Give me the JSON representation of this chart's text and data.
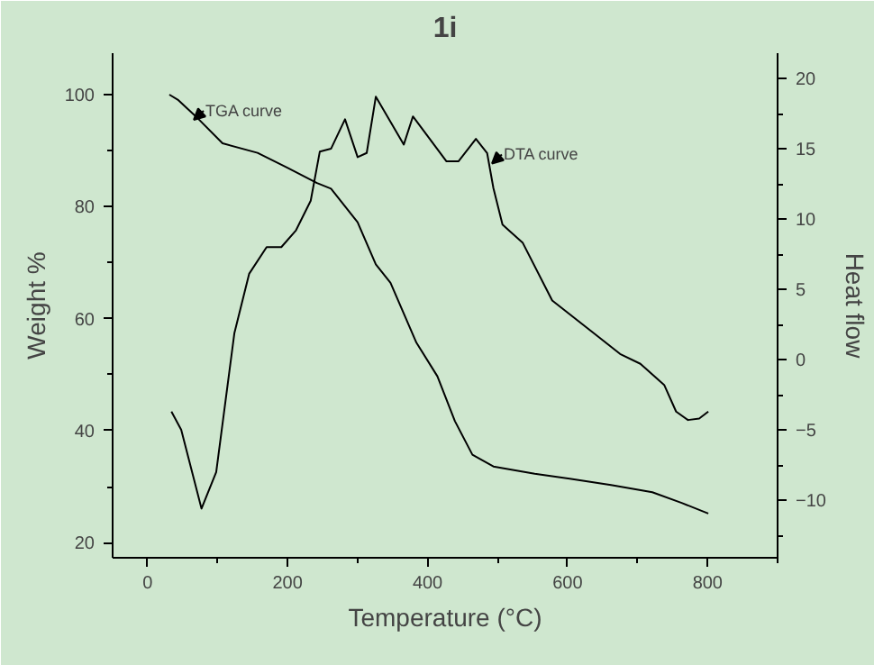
{
  "chart_data": {
    "type": "line",
    "title": "1i",
    "xlabel": "Temperature (°C)",
    "ylabel": "Weight %",
    "y2label": "Heat flow",
    "xlim": [
      -50,
      900
    ],
    "xticks": [
      0,
      200,
      400,
      600,
      800
    ],
    "ylim": [
      17.3,
      107.4
    ],
    "yticks": [
      20,
      40,
      60,
      80,
      100
    ],
    "y2lim": [
      -14.1,
      21.8
    ],
    "y2ticks": [
      -10,
      -5,
      0,
      5,
      10,
      15,
      20
    ],
    "grid": false,
    "marker": "none",
    "line_style": "solid",
    "series": [
      {
        "color": "#000000",
        "x": [
          31,
          44,
          73,
          107,
          157,
          199,
          242,
          262,
          300,
          326,
          347,
          384,
          414,
          439,
          464,
          494,
          553,
          603,
          662,
          721,
          763,
          801
        ],
        "values": [
          100,
          99,
          95.6,
          91.3,
          89.6,
          87,
          84.2,
          83.2,
          77.2,
          69.7,
          66.4,
          55.7,
          49.7,
          41.7,
          35.7,
          33.6,
          32.3,
          31.4,
          30.3,
          29,
          27.1,
          25.2
        ]
      },
      {
        "color": "#000000",
        "axis": "y2",
        "x": [
          34,
          48,
          77,
          98,
          124,
          145,
          170,
          191,
          212,
          233,
          246,
          262,
          282,
          300,
          313,
          326,
          366,
          379,
          427,
          444,
          469,
          485,
          494,
          507,
          536,
          578,
          637,
          675,
          704,
          738,
          755,
          772,
          788,
          801
        ],
        "values": [
          -3.7,
          -5.0,
          -10.6,
          -8.0,
          1.9,
          6.1,
          8.0,
          8.0,
          9.2,
          11.3,
          14.8,
          15.0,
          17.1,
          14.4,
          14.7,
          18.7,
          15.3,
          17.3,
          14.1,
          14.1,
          15.7,
          14.7,
          12.2,
          9.6,
          8.3,
          4.2,
          1.9,
          0.4,
          -0.3,
          -1.8,
          -3.7,
          -4.3,
          -4.2,
          -3.7
        ]
      }
    ],
    "annotations": [
      {
        "text": "TGA curve",
        "x": 66,
        "y": 95.5
      },
      {
        "text": "DTA curve",
        "x": 492,
        "y": 87.7
      }
    ]
  }
}
